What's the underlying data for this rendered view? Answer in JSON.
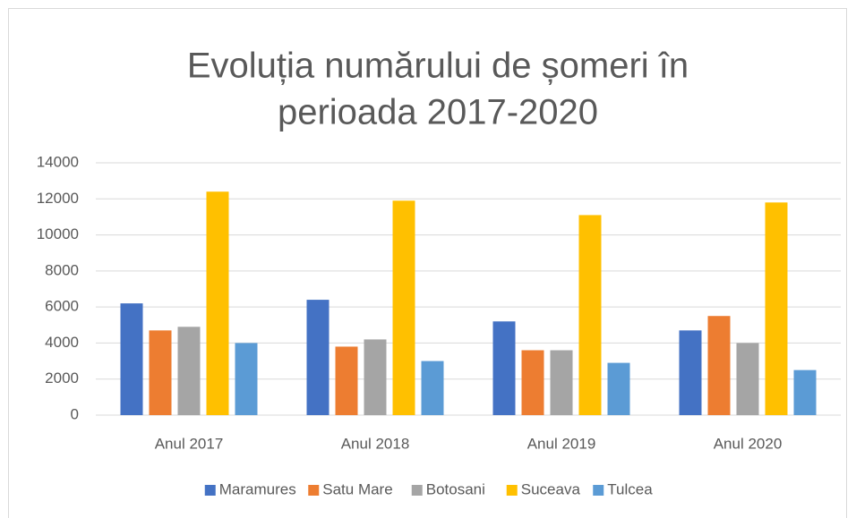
{
  "chart_data": {
    "type": "bar",
    "title": [
      "Evoluția numărului de șomeri în",
      "perioada 2017-2020"
    ],
    "categories": [
      "Anul 2017",
      "Anul 2018",
      "Anul 2019",
      "Anul 2020"
    ],
    "series": [
      {
        "name": "Maramures",
        "color": "#4472c4",
        "values": [
          6200,
          6400,
          5200,
          4700
        ]
      },
      {
        "name": "Satu Mare",
        "color": "#ed7d31",
        "values": [
          4700,
          3800,
          3600,
          5500
        ]
      },
      {
        "name": "Botosani",
        "color": "#a5a5a5",
        "values": [
          4900,
          4200,
          3600,
          4000
        ]
      },
      {
        "name": "Suceava",
        "color": "#ffc000",
        "values": [
          12400,
          11900,
          11100,
          11800
        ]
      },
      {
        "name": "Tulcea",
        "color": "#5b9bd5",
        "values": [
          4000,
          3000,
          2900,
          2500
        ]
      }
    ],
    "ylim": [
      0,
      14000
    ],
    "yticks": [
      0,
      2000,
      4000,
      6000,
      8000,
      10000,
      12000,
      14000
    ],
    "grid": true,
    "legend": "bottom"
  }
}
